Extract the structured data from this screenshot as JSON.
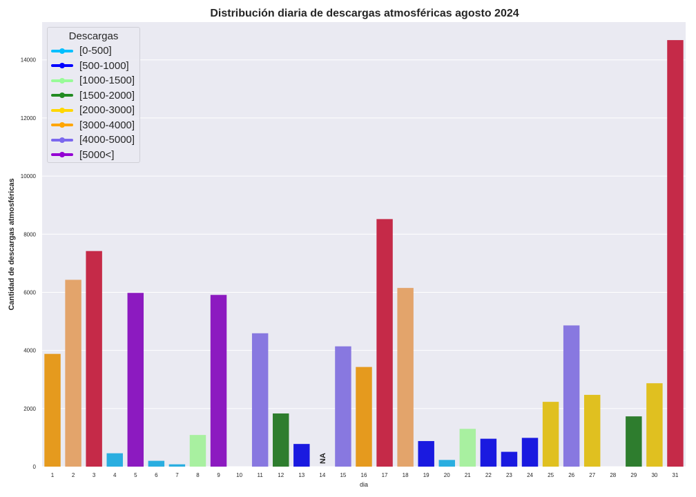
{
  "chart_data": {
    "type": "bar",
    "title": "Distribución diaria de descargas atmosféricas agosto 2024",
    "xlabel": "dia",
    "ylabel": "Cantidad de descargas atmosféricas",
    "ylim": [
      0,
      15300
    ],
    "yticks": [
      0,
      2000,
      4000,
      6000,
      8000,
      10000,
      12000,
      14000
    ],
    "grid": true,
    "categories": [
      "1",
      "2",
      "3",
      "4",
      "5",
      "6",
      "7",
      "8",
      "9",
      "10",
      "11",
      "12",
      "13",
      "14",
      "15",
      "16",
      "17",
      "18",
      "19",
      "20",
      "21",
      "22",
      "23",
      "24",
      "25",
      "26",
      "27",
      "28",
      "29",
      "30",
      "31"
    ],
    "values": [
      3880,
      6430,
      7420,
      460,
      5980,
      200,
      80,
      1090,
      5910,
      0,
      4590,
      1830,
      780,
      null,
      4140,
      3430,
      8520,
      6150,
      880,
      230,
      1300,
      960,
      510,
      990,
      2230,
      4860,
      2470,
      0,
      1730,
      2870,
      14680
    ],
    "bar_colors": [
      "#e59a1e",
      "#e3a46b",
      "#c52a48",
      "#2aaee0",
      "#8c1ac0",
      "#2aaee0",
      "#2aaee0",
      "#a8f0a0",
      "#8c1ac0",
      "#2aaee0",
      "#8878e0",
      "#2e7d2e",
      "#1a1ae0",
      "#2aaee0",
      "#8878e0",
      "#e59a1e",
      "#c52a48",
      "#e3a46b",
      "#1a1ae0",
      "#2aaee0",
      "#a8f0a0",
      "#1a1ae0",
      "#1a1ae0",
      "#1a1ae0",
      "#e0c020",
      "#8878e0",
      "#e0c020",
      "#2aaee0",
      "#2e7d2e",
      "#e0c020",
      "#c52a48"
    ],
    "na_label": "NA",
    "legend": {
      "title": "Descargas",
      "placement": "top-left",
      "items": [
        {
          "label": "[0-500]",
          "color": "#00bfff"
        },
        {
          "label": "[500-1000]",
          "color": "#0000ff"
        },
        {
          "label": "[1000-1500]",
          "color": "#98fb98"
        },
        {
          "label": "[1500-2000]",
          "color": "#228b22"
        },
        {
          "label": "[2000-3000]",
          "color": "#ffd700"
        },
        {
          "label": "[3000-4000]",
          "color": "#ffa500"
        },
        {
          "label": "[4000-5000]",
          "color": "#7b68ee"
        },
        {
          "label": "[5000<]",
          "color": "#9400d3"
        }
      ]
    }
  }
}
